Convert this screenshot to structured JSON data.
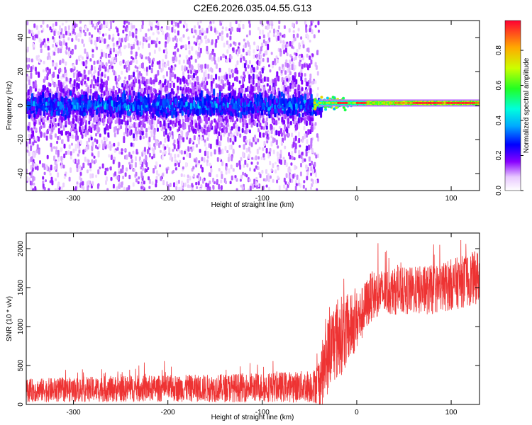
{
  "chart_data": [
    {
      "type": "heatmap",
      "title": "C2E6.2026.035.04.55.G13",
      "xlabel": "Height of straight line (km)",
      "ylabel": "Frequency (Hz)",
      "xlim": [
        -350,
        130
      ],
      "ylim": [
        -50,
        50
      ],
      "xticks": [
        -300,
        -200,
        -100,
        0,
        100
      ],
      "xtick_labels": [
        "-300",
        "-200",
        "-100",
        "0",
        "100"
      ],
      "yticks": [
        -40,
        -20,
        0,
        20,
        40
      ],
      "ytick_labels": [
        "-40",
        "-20",
        "0",
        "20",
        "40"
      ],
      "colorbar": {
        "label": "Normalized spectral amplitude",
        "range": [
          0.0,
          0.97
        ],
        "ticks": [
          0.0,
          0.2,
          0.4,
          0.6,
          0.8
        ],
        "tick_labels": [
          "0.0",
          "0.2",
          "0.4",
          "0.6",
          "0.8"
        ],
        "colormap": "rainbow"
      },
      "features": {
        "scatter_region_km": [
          -350,
          -45
        ],
        "strong_band_hz": [
          -5,
          5
        ],
        "clean_line_start_km": -40,
        "clean_line_freq_hz": 1.5
      }
    },
    {
      "type": "line",
      "xlabel": "Height of straight line (km)",
      "ylabel": "SNR (10 * v/v)",
      "xlim": [
        -350,
        130
      ],
      "ylim": [
        0,
        2200
      ],
      "xticks": [
        -300,
        -200,
        -100,
        0,
        100
      ],
      "xtick_labels": [
        "-300",
        "-200",
        "-100",
        "0",
        "100"
      ],
      "yticks": [
        0,
        500,
        1000,
        1500,
        2000
      ],
      "ytick_labels": [
        "0",
        "500",
        "1000",
        "1500",
        "2000"
      ],
      "series": [
        {
          "name": "SNR",
          "color": "#ee3333",
          "x": [
            -350,
            -300,
            -250,
            -200,
            -150,
            -100,
            -60,
            -45,
            -40,
            -35,
            -30,
            -25,
            -20,
            -15,
            -10,
            -5,
            0,
            5,
            10,
            15,
            20,
            30,
            40,
            60,
            80,
            100,
            120,
            130
          ],
          "y": [
            180,
            190,
            200,
            205,
            210,
            220,
            230,
            240,
            300,
            450,
            650,
            800,
            850,
            900,
            950,
            1000,
            1080,
            1150,
            1280,
            1380,
            1420,
            1440,
            1450,
            1460,
            1470,
            1540,
            1600,
            1650
          ],
          "spread": [
            150,
            160,
            170,
            170,
            180,
            190,
            200,
            220,
            320,
            450,
            500,
            520,
            550,
            500,
            450,
            420,
            380,
            350,
            330,
            320,
            310,
            300,
            300,
            310,
            320,
            330,
            340,
            350
          ]
        }
      ]
    }
  ]
}
